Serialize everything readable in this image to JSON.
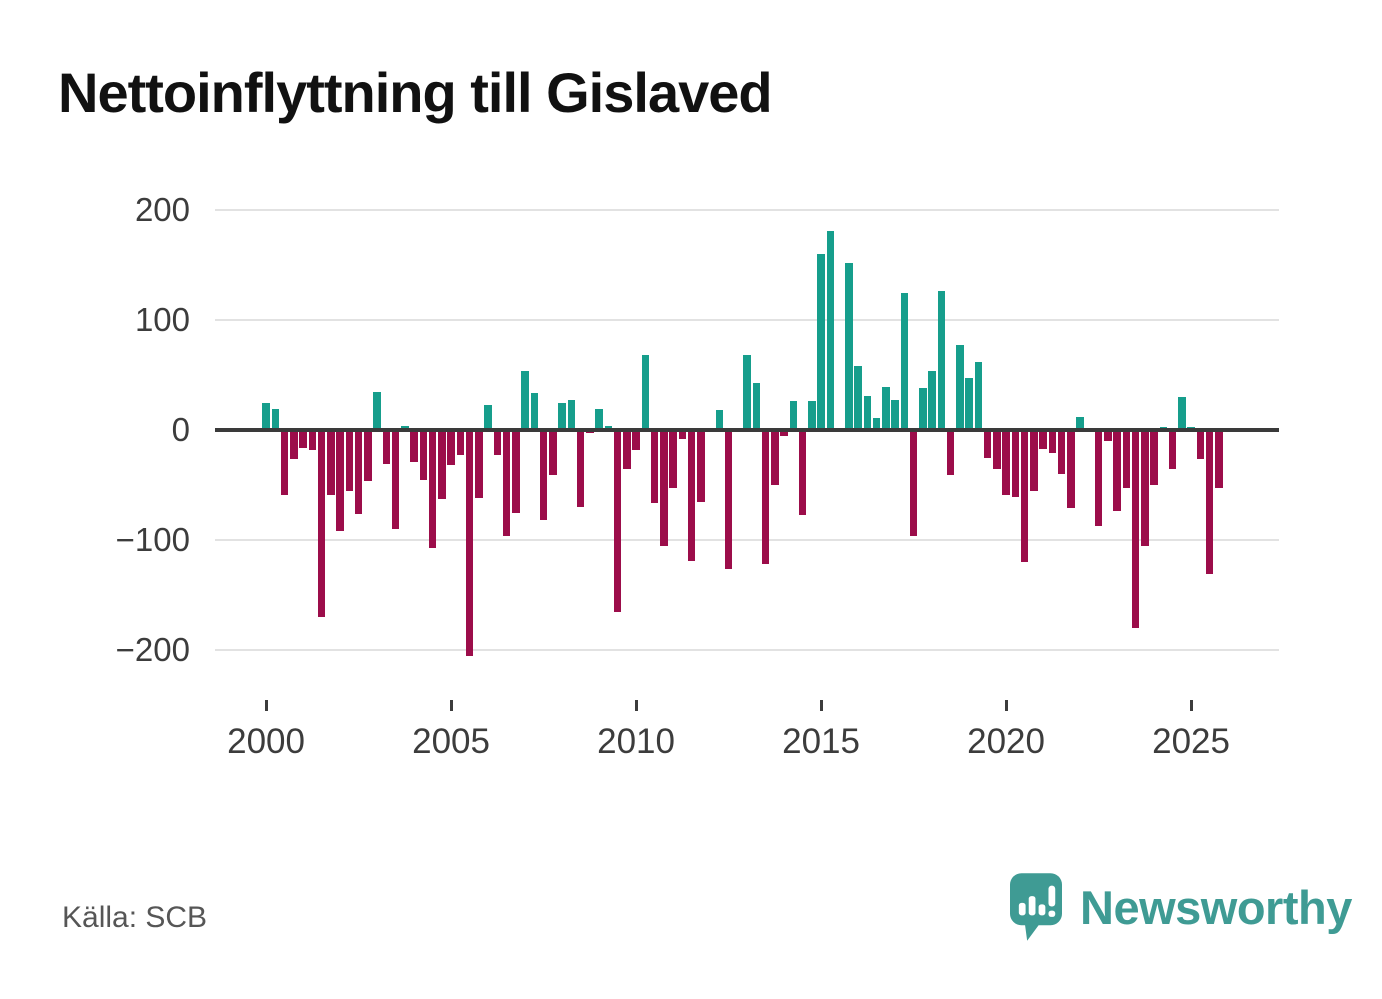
{
  "title": "Nettoinflyttning till Gislaved",
  "source_label": "Källa: SCB",
  "branding": {
    "name": "Newsworthy",
    "logo_icon": "speech-bubble-with-chart-bars-and-exclamation",
    "color": "#3f9b94"
  },
  "chart_data": {
    "type": "bar",
    "frequency": "quarterly",
    "start_period": "2000-Q1",
    "end_period": "2025-Q4",
    "title": "Nettoinflyttning till Gislaved",
    "xlabel": "",
    "ylabel": "",
    "ylim": [
      -230,
      215
    ],
    "grid": "horizontal",
    "legend": "none",
    "y_ticks": [
      200,
      100,
      0,
      -100,
      -200
    ],
    "y_tick_labels": [
      "200",
      "100",
      "0",
      "−100",
      "−200"
    ],
    "x_tick_years": [
      2000,
      2005,
      2010,
      2015,
      2020,
      2025
    ],
    "x_tick_labels": [
      "2000",
      "2005",
      "2010",
      "2015",
      "2020",
      "2025"
    ],
    "colors": {
      "positive": "#169e8c",
      "negative": "#9c0d4a",
      "axis": "#3a3a3a",
      "grid": "#e2e2e2"
    },
    "values": [
      25,
      19,
      -59,
      -26,
      -16,
      -18,
      -170,
      -59,
      -92,
      -55,
      -76,
      -46,
      35,
      -31,
      -90,
      4,
      -29,
      -45,
      -107,
      -63,
      -32,
      -23,
      -205,
      -62,
      23,
      -23,
      -96,
      -75,
      54,
      34,
      -82,
      -41,
      25,
      27,
      -70,
      -3,
      19,
      4,
      -165,
      -35,
      -18,
      68,
      -66,
      -105,
      -53,
      -8,
      -119,
      -65,
      0,
      18,
      -126,
      0,
      68,
      43,
      -122,
      -50,
      -5,
      26,
      -77,
      26,
      160,
      181,
      0,
      152,
      58,
      31,
      11,
      39,
      27,
      125,
      -96,
      38,
      54,
      126,
      -41,
      77,
      47,
      62,
      -25,
      -35,
      -59,
      -61,
      -120,
      -55,
      -17,
      -21,
      -40,
      -71,
      12,
      0,
      -87,
      -10,
      -74,
      -53,
      -180,
      -105,
      -50,
      3,
      -35,
      30,
      3,
      -26,
      -131,
      -53
    ]
  }
}
